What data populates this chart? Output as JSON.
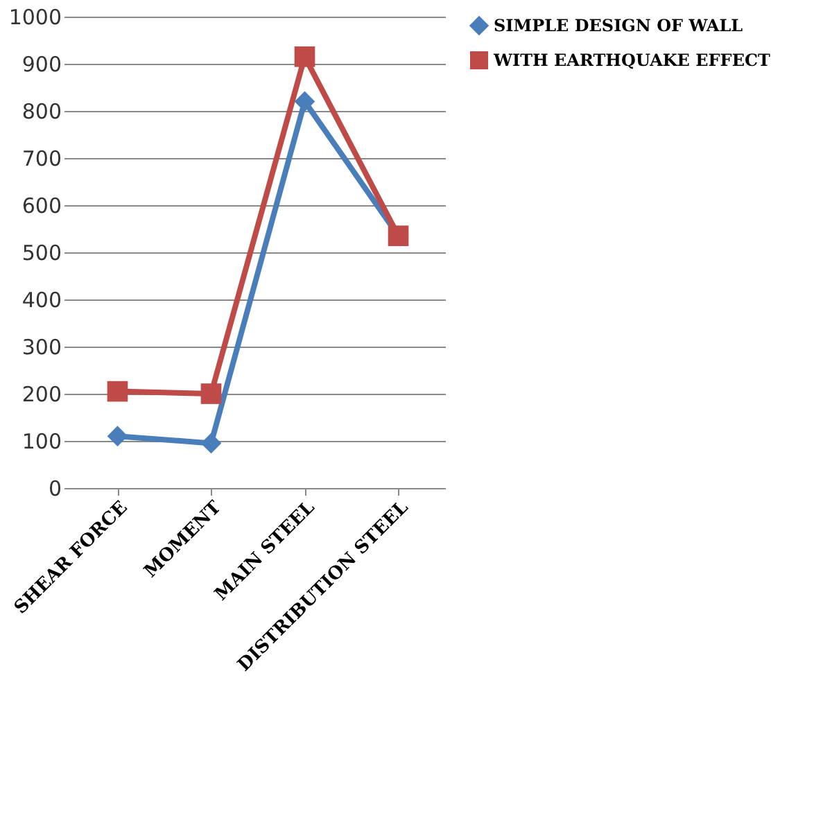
{
  "chart_data": {
    "type": "line",
    "categories": [
      "SHEAR FORCE",
      "MOMENT",
      "MAIN STEEL",
      "DISTRIBUTION STEEL"
    ],
    "series": [
      {
        "name": "SIMPLE DESIGN OF WALL",
        "color": "#4a7ebb",
        "marker": "diamond",
        "values": [
          110,
          95,
          820,
          535
        ]
      },
      {
        "name": "WITH EARTHQUAKE EFFECT",
        "color": "#be4b48",
        "marker": "square",
        "values": [
          205,
          200,
          915,
          535
        ]
      }
    ],
    "ylim": [
      0,
      1000
    ],
    "yticks": [
      0,
      100,
      200,
      300,
      400,
      500,
      600,
      700,
      800,
      900,
      1000
    ],
    "grid": "y",
    "legend": "right",
    "line_style": "solid"
  }
}
